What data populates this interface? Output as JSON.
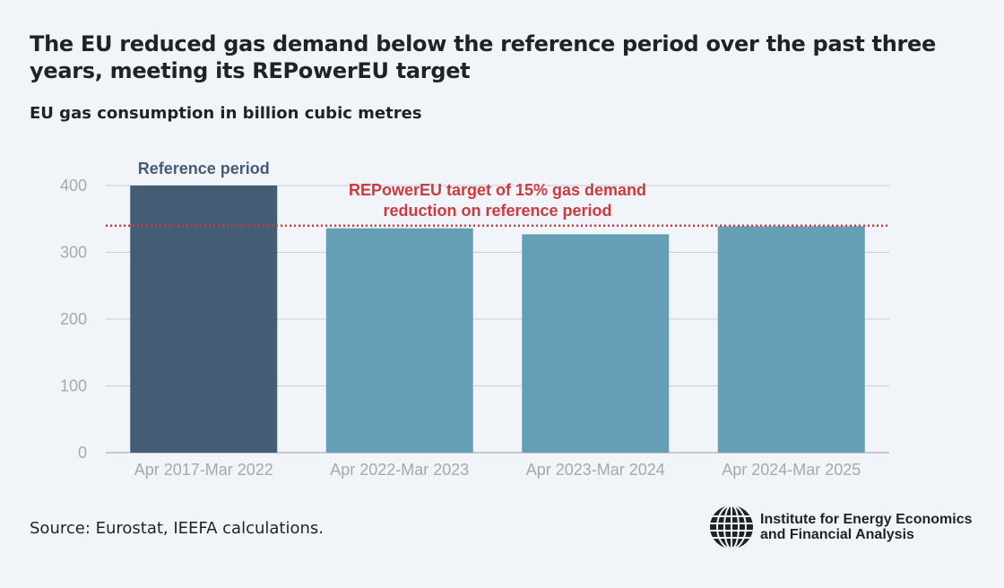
{
  "title": "The EU reduced gas demand below the reference period over the past three years, meeting its REPowerEU target",
  "subtitle": "EU gas consumption in billion cubic metres",
  "source": "Source: Eurostat, IEEFA calculations.",
  "logo": {
    "line1": "Institute for Energy Economics",
    "line2": "and Financial Analysis"
  },
  "chart_data": {
    "type": "bar",
    "title": "The EU reduced gas demand below the reference period over the past three years, meeting its REPowerEU target",
    "ylabel": "EU gas consumption in billion cubic metres",
    "categories": [
      "Apr 2017-Mar 2022",
      "Apr 2022-Mar 2023",
      "Apr 2023-Mar 2024",
      "Apr 2024-Mar 2025"
    ],
    "values": [
      400,
      336,
      327,
      339
    ],
    "colors": [
      "#445d74",
      "#649fb6",
      "#649fb6",
      "#649fb6"
    ],
    "ylim": [
      0,
      400
    ],
    "yticks": [
      0,
      100,
      200,
      300,
      400
    ],
    "grid": true,
    "annotations": [
      {
        "text": "Reference period",
        "category": "Apr 2017-Mar 2022",
        "color": "#445d74"
      },
      {
        "text_line1": "REPowerEU target of 15% gas demand",
        "text_line2": "reduction on reference period",
        "y": 340,
        "style": "dotted",
        "color": "#d0393c"
      }
    ]
  }
}
